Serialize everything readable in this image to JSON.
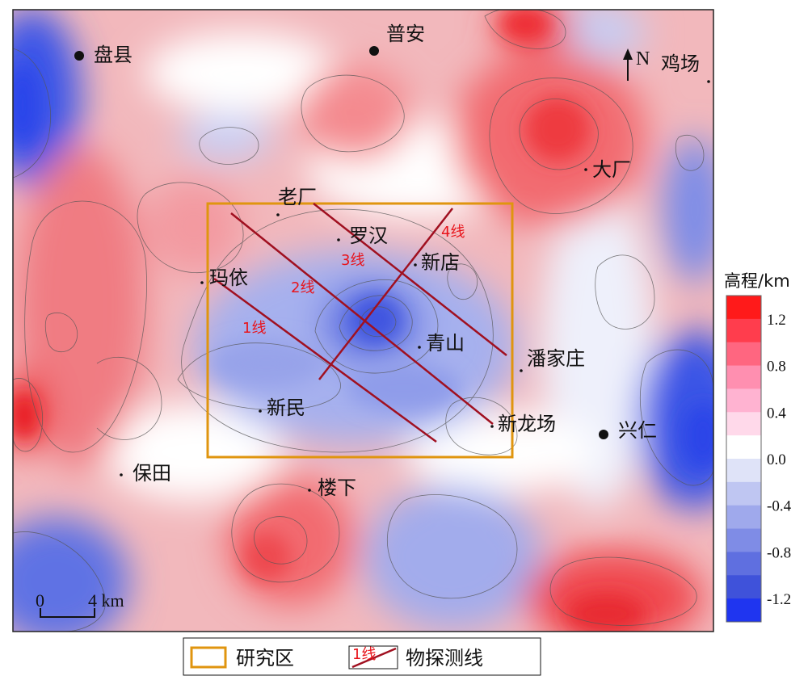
{
  "places": [
    {
      "id": "panxian",
      "name": "盘县"
    },
    {
      "id": "puan",
      "name": "普安"
    },
    {
      "id": "jichang",
      "name": "鸡场"
    },
    {
      "id": "dachang",
      "name": "大厂"
    },
    {
      "id": "laochang",
      "name": "老厂"
    },
    {
      "id": "luohan",
      "name": "罗汉"
    },
    {
      "id": "xindian",
      "name": "新店"
    },
    {
      "id": "mayi",
      "name": "玛依"
    },
    {
      "id": "qingshan",
      "name": "青山"
    },
    {
      "id": "panjiazhuang",
      "name": "潘家庄"
    },
    {
      "id": "xinmin",
      "name": "新民"
    },
    {
      "id": "xinlongchang",
      "name": "新龙场"
    },
    {
      "id": "xingren",
      "name": "兴仁"
    },
    {
      "id": "baotian",
      "name": "保田"
    },
    {
      "id": "louxia",
      "name": "楼下"
    }
  ],
  "survey_lines": [
    {
      "id": "line1",
      "label": "1线"
    },
    {
      "id": "line2",
      "label": "2线"
    },
    {
      "id": "line3",
      "label": "3线"
    },
    {
      "id": "line4",
      "label": "4线"
    }
  ],
  "north_label": "N",
  "scale_bar": {
    "start": "0",
    "end": "4 km"
  },
  "colorbar": {
    "title": "高程/km",
    "tick_labels": [
      "1.2",
      "0.8",
      "0.4",
      "0.0",
      "-0.4",
      "-0.8",
      "-1.2"
    ],
    "range": [
      -1.4,
      1.4
    ],
    "colors": [
      "#ff1a1a",
      "#ff3d4d",
      "#ff6680",
      "#ff8fb0",
      "#ffb3d1",
      "#ffd9ea",
      "#ffffff",
      "#dfe3f8",
      "#bfc6f2",
      "#9fa9ec",
      "#7f8ce6",
      "#5f6fe0",
      "#3f52da",
      "#1f35f0"
    ]
  },
  "legend": {
    "study_area": "研究区",
    "survey_line_sample": "1线",
    "survey_line": "物探测线"
  },
  "colors": {
    "study_area_border": "#e0950f",
    "survey_line": "#a01020",
    "survey_label": "#e8141b",
    "high": "#f03c40",
    "low": "#4a63e6"
  }
}
